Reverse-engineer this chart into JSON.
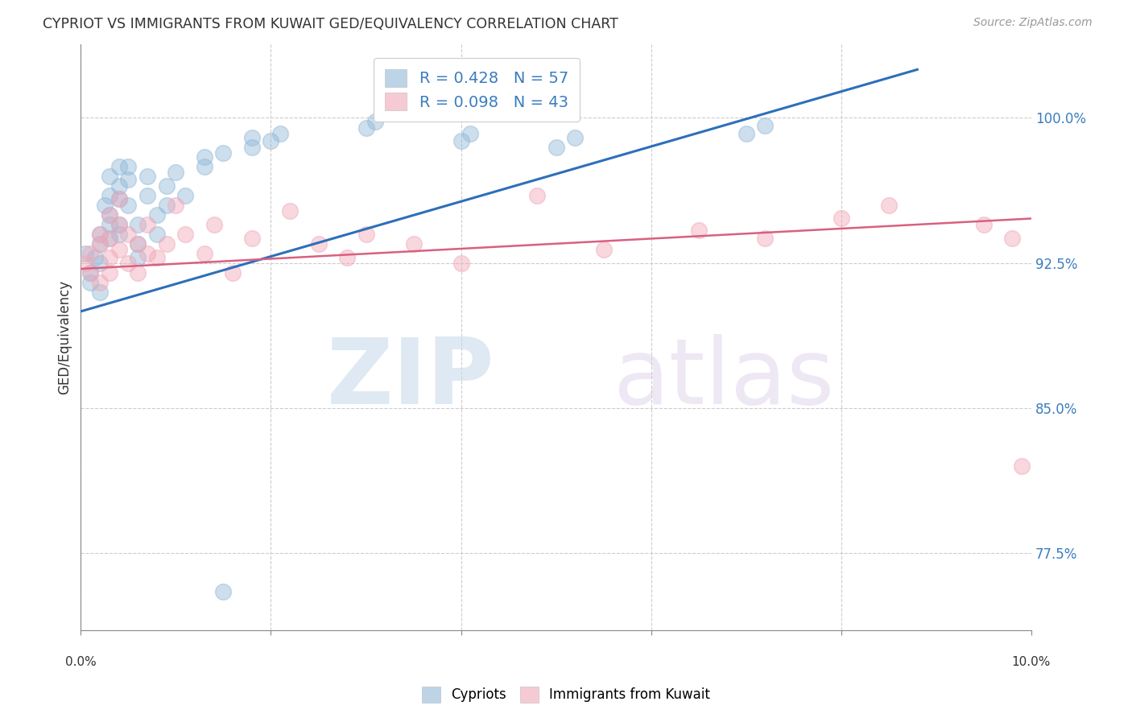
{
  "title": "CYPRIOT VS IMMIGRANTS FROM KUWAIT GED/EQUIVALENCY CORRELATION CHART",
  "source": "Source: ZipAtlas.com",
  "ylabel": "GED/Equivalency",
  "ytick_values": [
    0.775,
    0.85,
    0.925,
    1.0
  ],
  "ytick_labels": [
    "77.5%",
    "85.0%",
    "92.5%",
    "100.0%"
  ],
  "xmin": 0.0,
  "xmax": 0.1,
  "ymin": 0.735,
  "ymax": 1.038,
  "cypriot_color": "#92b8d8",
  "kuwait_color": "#f0a8b8",
  "trendline_blue": "#2d6fba",
  "trendline_pink": "#d96080",
  "blue_r": "0.428",
  "blue_n": "57",
  "pink_r": "0.098",
  "pink_n": "43",
  "cypriot_x": [
    0.0005,
    0.001,
    0.001,
    0.0015,
    0.002,
    0.002,
    0.002,
    0.002,
    0.0025,
    0.003,
    0.003,
    0.003,
    0.003,
    0.003,
    0.004,
    0.004,
    0.004,
    0.004,
    0.004,
    0.005,
    0.005,
    0.005,
    0.006,
    0.006,
    0.006,
    0.007,
    0.007,
    0.008,
    0.008,
    0.009,
    0.009,
    0.01,
    0.011,
    0.013,
    0.013,
    0.015,
    0.018,
    0.018,
    0.02,
    0.021,
    0.03,
    0.031,
    0.04,
    0.041,
    0.05,
    0.052,
    0.07,
    0.072,
    0.015
  ],
  "cypriot_y": [
    0.93,
    0.92,
    0.915,
    0.928,
    0.935,
    0.94,
    0.91,
    0.925,
    0.955,
    0.96,
    0.945,
    0.938,
    0.97,
    0.95,
    0.965,
    0.975,
    0.958,
    0.945,
    0.94,
    0.968,
    0.955,
    0.975,
    0.945,
    0.935,
    0.928,
    0.96,
    0.97,
    0.95,
    0.94,
    0.955,
    0.965,
    0.972,
    0.96,
    0.975,
    0.98,
    0.982,
    0.985,
    0.99,
    0.988,
    0.992,
    0.995,
    0.998,
    0.988,
    0.992,
    0.985,
    0.99,
    0.992,
    0.996,
    0.755
  ],
  "kuwait_x": [
    0.0005,
    0.001,
    0.001,
    0.002,
    0.002,
    0.002,
    0.003,
    0.003,
    0.003,
    0.003,
    0.004,
    0.004,
    0.004,
    0.005,
    0.005,
    0.006,
    0.006,
    0.007,
    0.007,
    0.008,
    0.009,
    0.01,
    0.011,
    0.013,
    0.014,
    0.016,
    0.018,
    0.022,
    0.025,
    0.028,
    0.03,
    0.035,
    0.04,
    0.048,
    0.055,
    0.065,
    0.072,
    0.08,
    0.085,
    0.095,
    0.098,
    0.099
  ],
  "kuwait_y": [
    0.925,
    0.93,
    0.92,
    0.935,
    0.94,
    0.915,
    0.95,
    0.928,
    0.938,
    0.92,
    0.945,
    0.932,
    0.958,
    0.94,
    0.925,
    0.935,
    0.92,
    0.93,
    0.945,
    0.928,
    0.935,
    0.955,
    0.94,
    0.93,
    0.945,
    0.92,
    0.938,
    0.952,
    0.935,
    0.928,
    0.94,
    0.935,
    0.925,
    0.96,
    0.932,
    0.942,
    0.938,
    0.948,
    0.955,
    0.945,
    0.938,
    0.82
  ],
  "blue_trend_x": [
    0.0,
    0.088
  ],
  "blue_trend_y": [
    0.9,
    1.025
  ],
  "pink_trend_x": [
    0.0,
    0.1
  ],
  "pink_trend_y": [
    0.922,
    0.948
  ],
  "watermark_zip": "ZIP",
  "watermark_atlas": "atlas",
  "background_color": "#ffffff",
  "grid_color": "#cccccc",
  "axis_color": "#888888",
  "ytick_color": "#3a7dbf",
  "title_color": "#333333",
  "source_color": "#999999",
  "legend_edge_color": "#cccccc",
  "bottom_legend_labels": [
    "Cypriots",
    "Immigrants from Kuwait"
  ]
}
